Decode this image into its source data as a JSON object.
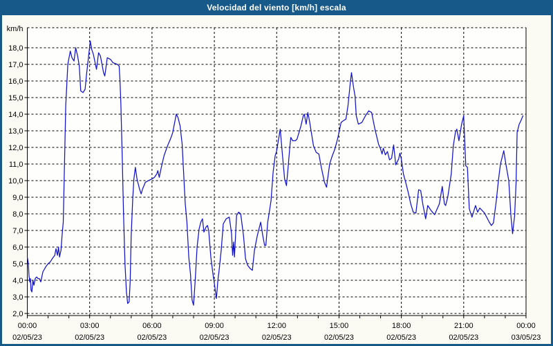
{
  "window": {
    "title": "Velocidad del viento [km/h] escala"
  },
  "colors": {
    "frame_blue": "#175989",
    "title_text": "#ffffff",
    "line_blue": "#1111cc",
    "grid_black": "#000000",
    "plot_bg": "#fefefc",
    "page_bg": "#fbfbf3"
  },
  "chart_data": {
    "type": "line",
    "title": "Velocidad del viento [km/h] escala",
    "ylabel_unit": "km/h",
    "xlabel": "",
    "grid": true,
    "legend": "none",
    "ylim": [
      1.875,
      19.2
    ],
    "xlim_hours": [
      0,
      24
    ],
    "y_tick_values": [
      18,
      17,
      16,
      15,
      14,
      13,
      12,
      11,
      10,
      9,
      8,
      7,
      6,
      5,
      4,
      3,
      2
    ],
    "y_tick_labels": [
      "18,0",
      "17,0",
      "16,0",
      "15,0",
      "14,0",
      "13,0",
      "12,0",
      "11,0",
      "10,0",
      "9,0",
      "8,0",
      "7,0",
      "6,0",
      "5,0",
      "4,0",
      "3,0",
      "2,0"
    ],
    "x_ticks": [
      {
        "h": 0,
        "time": "00:00",
        "date": "02/05/23"
      },
      {
        "h": 3,
        "time": "03:00",
        "date": "02/05/23"
      },
      {
        "h": 6,
        "time": "06:00",
        "date": "02/05/23"
      },
      {
        "h": 9,
        "time": "09:00",
        "date": "02/05/23"
      },
      {
        "h": 12,
        "time": "12:00",
        "date": "02/05/23"
      },
      {
        "h": 15,
        "time": "15:00",
        "date": "02/05/23"
      },
      {
        "h": 18,
        "time": "18:00",
        "date": "02/05/23"
      },
      {
        "h": 21,
        "time": "21:00",
        "date": "02/05/23"
      },
      {
        "h": 24,
        "time": "00:00",
        "date": "03/05/23"
      }
    ],
    "minor_x_tick_every_hours": 1,
    "series": [
      {
        "name": "Velocidad del viento",
        "units": "km/h",
        "points": [
          [
            0.0,
            5.4
          ],
          [
            0.05,
            5.0
          ],
          [
            0.08,
            4.3
          ],
          [
            0.12,
            3.9
          ],
          [
            0.15,
            4.1
          ],
          [
            0.18,
            3.4
          ],
          [
            0.22,
            3.3
          ],
          [
            0.27,
            4.0
          ],
          [
            0.32,
            3.7
          ],
          [
            0.38,
            4.1
          ],
          [
            0.45,
            4.2
          ],
          [
            0.52,
            4.1
          ],
          [
            0.58,
            4.1
          ],
          [
            0.65,
            3.9
          ],
          [
            0.75,
            4.5
          ],
          [
            0.88,
            4.8
          ],
          [
            1.0,
            5.0
          ],
          [
            1.1,
            5.1
          ],
          [
            1.2,
            5.3
          ],
          [
            1.32,
            5.5
          ],
          [
            1.38,
            5.9
          ],
          [
            1.45,
            5.5
          ],
          [
            1.5,
            6.0
          ],
          [
            1.55,
            5.4
          ],
          [
            1.62,
            5.8
          ],
          [
            1.68,
            6.8
          ],
          [
            1.73,
            7.5
          ],
          [
            1.78,
            10.4
          ],
          [
            1.85,
            14.5
          ],
          [
            1.95,
            17.0
          ],
          [
            2.07,
            17.8
          ],
          [
            2.15,
            17.4
          ],
          [
            2.25,
            17.2
          ],
          [
            2.33,
            18.0
          ],
          [
            2.42,
            17.5
          ],
          [
            2.5,
            16.9
          ],
          [
            2.57,
            15.4
          ],
          [
            2.68,
            15.3
          ],
          [
            2.78,
            15.5
          ],
          [
            2.85,
            16.4
          ],
          [
            2.95,
            17.5
          ],
          [
            3.03,
            18.4
          ],
          [
            3.1,
            17.9
          ],
          [
            3.18,
            17.6
          ],
          [
            3.33,
            16.7
          ],
          [
            3.43,
            17.7
          ],
          [
            3.52,
            17.5
          ],
          [
            3.67,
            16.5
          ],
          [
            3.73,
            16.3
          ],
          [
            3.85,
            17.4
          ],
          [
            4.0,
            17.3
          ],
          [
            4.12,
            17.1
          ],
          [
            4.33,
            17.0
          ],
          [
            4.42,
            16.9
          ],
          [
            4.46,
            16.0
          ],
          [
            4.5,
            14.7
          ],
          [
            4.57,
            11.3
          ],
          [
            4.63,
            8.0
          ],
          [
            4.7,
            5.0
          ],
          [
            4.77,
            3.3
          ],
          [
            4.83,
            2.6
          ],
          [
            4.9,
            2.7
          ],
          [
            4.95,
            3.9
          ],
          [
            5.0,
            6.7
          ],
          [
            5.07,
            8.8
          ],
          [
            5.13,
            10.1
          ],
          [
            5.2,
            10.8
          ],
          [
            5.28,
            10.1
          ],
          [
            5.4,
            9.5
          ],
          [
            5.48,
            9.2
          ],
          [
            5.55,
            9.5
          ],
          [
            5.68,
            9.9
          ],
          [
            5.83,
            10.0
          ],
          [
            6.0,
            10.1
          ],
          [
            6.12,
            10.2
          ],
          [
            6.23,
            10.4
          ],
          [
            6.28,
            10.6
          ],
          [
            6.35,
            10.2
          ],
          [
            6.45,
            10.8
          ],
          [
            6.58,
            11.5
          ],
          [
            6.75,
            12.1
          ],
          [
            6.92,
            12.6
          ],
          [
            7.0,
            12.9
          ],
          [
            7.17,
            14.0
          ],
          [
            7.25,
            13.8
          ],
          [
            7.35,
            13.3
          ],
          [
            7.45,
            12.2
          ],
          [
            7.52,
            10.5
          ],
          [
            7.6,
            8.6
          ],
          [
            7.68,
            7.5
          ],
          [
            7.77,
            5.4
          ],
          [
            7.85,
            4.4
          ],
          [
            7.93,
            2.8
          ],
          [
            8.0,
            2.5
          ],
          [
            8.08,
            4.0
          ],
          [
            8.17,
            6.0
          ],
          [
            8.27,
            7.1
          ],
          [
            8.35,
            7.5
          ],
          [
            8.43,
            7.7
          ],
          [
            8.5,
            6.9
          ],
          [
            8.6,
            7.2
          ],
          [
            8.67,
            7.3
          ],
          [
            8.73,
            7.0
          ],
          [
            8.83,
            5.4
          ],
          [
            8.93,
            4.4
          ],
          [
            9.0,
            3.8
          ],
          [
            9.1,
            2.9
          ],
          [
            9.17,
            4.0
          ],
          [
            9.23,
            4.6
          ],
          [
            9.33,
            5.8
          ],
          [
            9.43,
            7.4
          ],
          [
            9.57,
            7.7
          ],
          [
            9.72,
            7.8
          ],
          [
            9.83,
            6.8
          ],
          [
            9.88,
            5.5
          ],
          [
            9.93,
            6.3
          ],
          [
            9.97,
            5.4
          ],
          [
            10.07,
            7.9
          ],
          [
            10.17,
            8.1
          ],
          [
            10.27,
            8.0
          ],
          [
            10.4,
            6.7
          ],
          [
            10.5,
            5.3
          ],
          [
            10.6,
            4.9
          ],
          [
            10.73,
            4.7
          ],
          [
            10.83,
            4.6
          ],
          [
            10.93,
            5.8
          ],
          [
            11.07,
            6.7
          ],
          [
            11.17,
            7.2
          ],
          [
            11.23,
            7.5
          ],
          [
            11.33,
            6.7
          ],
          [
            11.42,
            6.1
          ],
          [
            11.48,
            6.1
          ],
          [
            11.57,
            7.5
          ],
          [
            11.67,
            8.3
          ],
          [
            11.73,
            8.8
          ],
          [
            11.83,
            10.5
          ],
          [
            11.93,
            11.5
          ],
          [
            12.0,
            11.8
          ],
          [
            12.17,
            13.1
          ],
          [
            12.28,
            11.5
          ],
          [
            12.38,
            10.1
          ],
          [
            12.47,
            9.7
          ],
          [
            12.55,
            10.8
          ],
          [
            12.63,
            12.0
          ],
          [
            12.68,
            12.6
          ],
          [
            12.77,
            12.4
          ],
          [
            12.9,
            12.4
          ],
          [
            12.98,
            12.5
          ],
          [
            13.17,
            13.3
          ],
          [
            13.28,
            13.9
          ],
          [
            13.33,
            14.0
          ],
          [
            13.42,
            13.4
          ],
          [
            13.5,
            14.1
          ],
          [
            13.58,
            13.6
          ],
          [
            13.77,
            12.1
          ],
          [
            13.9,
            11.7
          ],
          [
            14.03,
            11.6
          ],
          [
            14.13,
            10.9
          ],
          [
            14.3,
            9.9
          ],
          [
            14.4,
            9.6
          ],
          [
            14.55,
            11.0
          ],
          [
            14.65,
            11.4
          ],
          [
            14.8,
            11.9
          ],
          [
            14.93,
            12.5
          ],
          [
            15.0,
            12.9
          ],
          [
            15.1,
            13.5
          ],
          [
            15.2,
            13.6
          ],
          [
            15.33,
            13.7
          ],
          [
            15.43,
            14.5
          ],
          [
            15.55,
            16.0
          ],
          [
            15.6,
            16.5
          ],
          [
            15.7,
            15.6
          ],
          [
            15.77,
            15.1
          ],
          [
            15.83,
            13.9
          ],
          [
            15.93,
            13.4
          ],
          [
            16.1,
            13.5
          ],
          [
            16.27,
            13.9
          ],
          [
            16.43,
            14.2
          ],
          [
            16.57,
            14.1
          ],
          [
            16.73,
            13.1
          ],
          [
            16.9,
            12.2
          ],
          [
            17.0,
            11.9
          ],
          [
            17.07,
            11.6
          ],
          [
            17.13,
            11.95
          ],
          [
            17.23,
            11.55
          ],
          [
            17.33,
            11.75
          ],
          [
            17.43,
            11.25
          ],
          [
            17.53,
            11.35
          ],
          [
            17.63,
            12.15
          ],
          [
            17.73,
            10.95
          ],
          [
            17.87,
            11.3
          ],
          [
            17.93,
            11.65
          ],
          [
            18.0,
            11.3
          ],
          [
            18.1,
            10.4
          ],
          [
            18.23,
            9.8
          ],
          [
            18.33,
            9.3
          ],
          [
            18.45,
            8.6
          ],
          [
            18.57,
            8.1
          ],
          [
            18.7,
            8.05
          ],
          [
            18.83,
            9.45
          ],
          [
            18.93,
            9.4
          ],
          [
            19.03,
            8.6
          ],
          [
            19.17,
            7.7
          ],
          [
            19.27,
            8.5
          ],
          [
            19.43,
            8.2
          ],
          [
            19.6,
            7.95
          ],
          [
            19.83,
            8.6
          ],
          [
            19.97,
            9.65
          ],
          [
            20.07,
            8.6
          ],
          [
            20.13,
            8.5
          ],
          [
            20.23,
            9.0
          ],
          [
            20.4,
            10.4
          ],
          [
            20.5,
            12.1
          ],
          [
            20.6,
            12.9
          ],
          [
            20.67,
            13.1
          ],
          [
            20.77,
            12.4
          ],
          [
            20.9,
            13.4
          ],
          [
            21.0,
            13.9
          ],
          [
            21.1,
            10.9
          ],
          [
            21.18,
            10.8
          ],
          [
            21.27,
            8.3
          ],
          [
            21.4,
            7.8
          ],
          [
            21.57,
            8.5
          ],
          [
            21.67,
            8.1
          ],
          [
            21.77,
            8.35
          ],
          [
            22.0,
            8.05
          ],
          [
            22.23,
            7.5
          ],
          [
            22.33,
            7.3
          ],
          [
            22.43,
            7.45
          ],
          [
            22.57,
            8.8
          ],
          [
            22.67,
            10.0
          ],
          [
            22.77,
            11.0
          ],
          [
            22.93,
            11.8
          ],
          [
            23.03,
            11.0
          ],
          [
            23.17,
            10.0
          ],
          [
            23.27,
            7.9
          ],
          [
            23.35,
            6.8
          ],
          [
            23.45,
            7.9
          ],
          [
            23.52,
            9.9
          ],
          [
            23.57,
            12.9
          ],
          [
            23.67,
            13.4
          ],
          [
            23.75,
            13.6
          ],
          [
            23.85,
            13.9
          ]
        ]
      }
    ]
  }
}
